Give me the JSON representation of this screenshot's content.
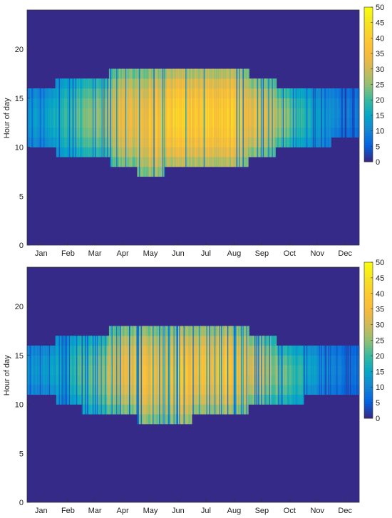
{
  "chart_data": [
    {
      "type": "heatmap",
      "title": "",
      "xlabel": "",
      "ylabel": "Hour of day",
      "x_tick_labels": [
        "Jan",
        "Feb",
        "Mar",
        "Apr",
        "May",
        "Jun",
        "Jul",
        "Aug",
        "Sep",
        "Oct",
        "Nov",
        "Dec"
      ],
      "y_ticks": [
        0,
        5,
        10,
        15,
        20
      ],
      "ylim": [
        0,
        24
      ],
      "xlim_days": [
        1,
        365
      ],
      "colorbar": {
        "min": 0,
        "max": 50,
        "ticks": [
          0,
          5,
          10,
          15,
          20,
          25,
          30,
          35,
          40,
          45,
          50
        ],
        "colormap": "parula"
      },
      "background_value": 0,
      "daylight_window_by_month": [
        {
          "month": "Jan",
          "start_hour": 10,
          "end_hour": 16,
          "peak_value": 15
        },
        {
          "month": "Feb",
          "start_hour": 9,
          "end_hour": 17,
          "peak_value": 22
        },
        {
          "month": "Mar",
          "start_hour": 9,
          "end_hour": 17,
          "peak_value": 30
        },
        {
          "month": "Apr",
          "start_hour": 8,
          "end_hour": 18,
          "peak_value": 38
        },
        {
          "month": "May",
          "start_hour": 7,
          "end_hour": 18,
          "peak_value": 42
        },
        {
          "month": "Jun",
          "start_hour": 8,
          "end_hour": 18,
          "peak_value": 46
        },
        {
          "month": "Jul",
          "start_hour": 8,
          "end_hour": 18,
          "peak_value": 47
        },
        {
          "month": "Aug",
          "start_hour": 8,
          "end_hour": 18,
          "peak_value": 45
        },
        {
          "month": "Sep",
          "start_hour": 9,
          "end_hour": 17,
          "peak_value": 36
        },
        {
          "month": "Oct",
          "start_hour": 10,
          "end_hour": 16,
          "peak_value": 26
        },
        {
          "month": "Nov",
          "start_hour": 10,
          "end_hour": 16,
          "peak_value": 16
        },
        {
          "month": "Dec",
          "start_hour": 11,
          "end_hour": 16,
          "peak_value": 10
        }
      ]
    },
    {
      "type": "heatmap",
      "title": "",
      "xlabel": "",
      "ylabel": "Hour of day",
      "x_tick_labels": [
        "Jan",
        "Feb",
        "Mar",
        "Apr",
        "May",
        "Jun",
        "Jul",
        "Aug",
        "Sep",
        "Oct",
        "Nov",
        "Dec"
      ],
      "y_ticks": [
        0,
        5,
        10,
        15,
        20
      ],
      "ylim": [
        0,
        24
      ],
      "xlim_days": [
        1,
        365
      ],
      "colorbar": {
        "min": 0,
        "max": 50,
        "ticks": [
          0,
          5,
          10,
          15,
          20,
          25,
          30,
          35,
          40,
          45,
          50
        ],
        "colormap": "parula"
      },
      "background_value": 0,
      "daylight_window_by_month": [
        {
          "month": "Jan",
          "start_hour": 11,
          "end_hour": 16,
          "peak_value": 14
        },
        {
          "month": "Feb",
          "start_hour": 10,
          "end_hour": 17,
          "peak_value": 20
        },
        {
          "month": "Mar",
          "start_hour": 9,
          "end_hour": 17,
          "peak_value": 28
        },
        {
          "month": "Apr",
          "start_hour": 9,
          "end_hour": 18,
          "peak_value": 36
        },
        {
          "month": "May",
          "start_hour": 8,
          "end_hour": 18,
          "peak_value": 40
        },
        {
          "month": "Jun",
          "start_hour": 8,
          "end_hour": 18,
          "peak_value": 42
        },
        {
          "month": "Jul",
          "start_hour": 9,
          "end_hour": 18,
          "peak_value": 42
        },
        {
          "month": "Aug",
          "start_hour": 9,
          "end_hour": 18,
          "peak_value": 41
        },
        {
          "month": "Sep",
          "start_hour": 10,
          "end_hour": 17,
          "peak_value": 33
        },
        {
          "month": "Oct",
          "start_hour": 10,
          "end_hour": 16,
          "peak_value": 24
        },
        {
          "month": "Nov",
          "start_hour": 11,
          "end_hour": 16,
          "peak_value": 15
        },
        {
          "month": "Dec",
          "start_hour": 11,
          "end_hour": 16,
          "peak_value": 9
        }
      ]
    }
  ]
}
